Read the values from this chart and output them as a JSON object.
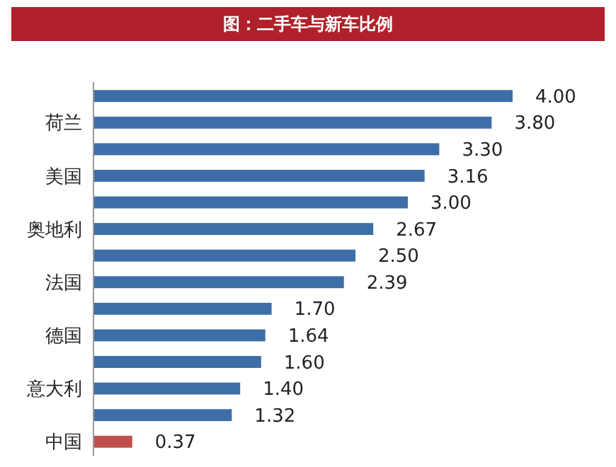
{
  "chart_data": {
    "type": "bar",
    "orientation": "horizontal",
    "title": "图：二手车与新车比例",
    "categories": [
      null,
      "荷兰",
      null,
      "美国",
      null,
      "奥地利",
      null,
      "法国",
      null,
      "德国",
      null,
      "意大利",
      null,
      "中国"
    ],
    "values": [
      4.0,
      3.8,
      3.3,
      3.16,
      3.0,
      2.67,
      2.5,
      2.39,
      1.7,
      1.64,
      1.6,
      1.4,
      1.32,
      0.37
    ],
    "colors": [
      "#3d6ea8",
      "#3d6ea8",
      "#3d6ea8",
      "#3d6ea8",
      "#3d6ea8",
      "#3d6ea8",
      "#3d6ea8",
      "#3d6ea8",
      "#3d6ea8",
      "#3d6ea8",
      "#3d6ea8",
      "#3d6ea8",
      "#3d6ea8",
      "#c0504d"
    ],
    "value_labels": [
      "4.00",
      "3.80",
      "3.30",
      "3.16",
      "3.00",
      "2.67",
      "2.50",
      "2.39",
      "1.70",
      "1.64",
      "1.60",
      "1.40",
      "1.32",
      "0.37"
    ]
  }
}
